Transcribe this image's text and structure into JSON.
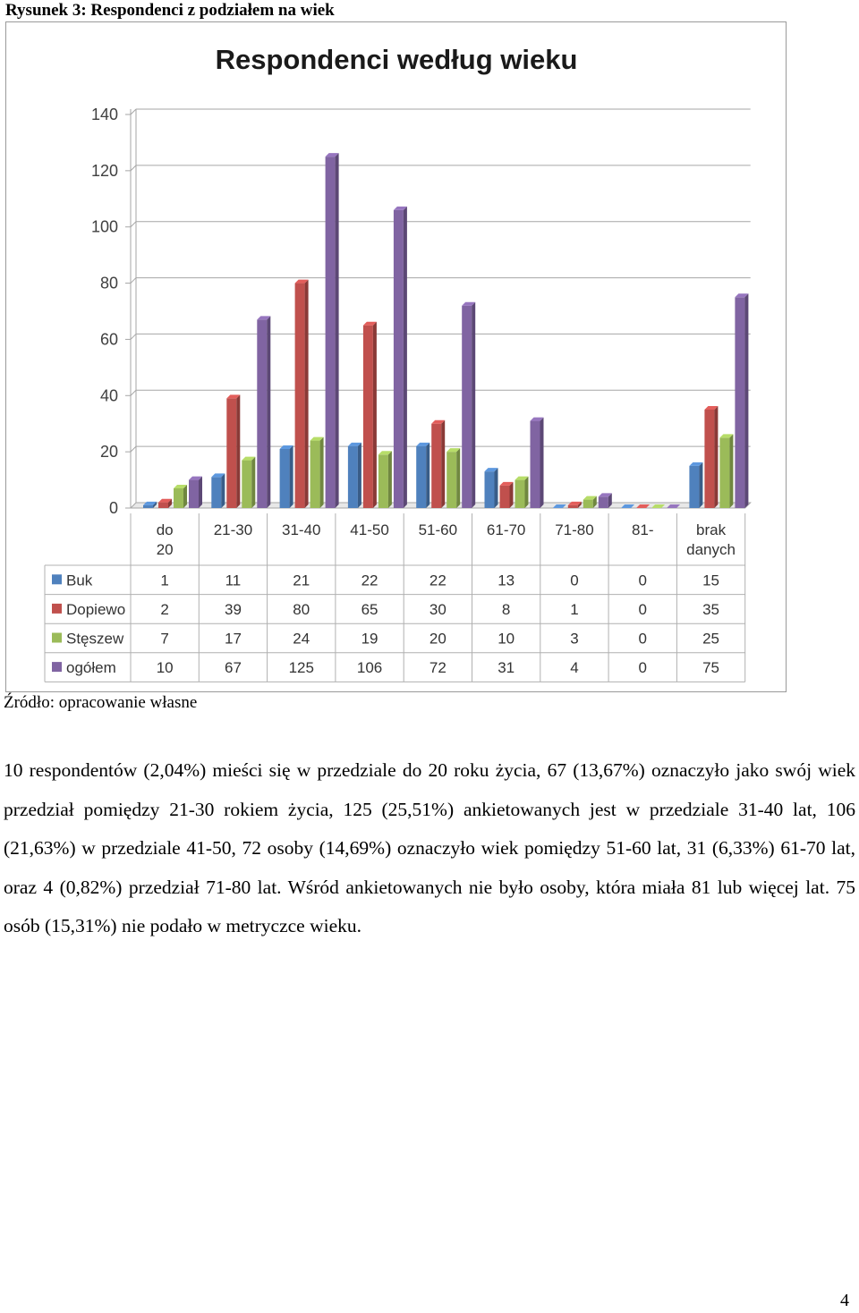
{
  "figure_caption": "Rysunek 3: Respondenci z podziałem na wiek",
  "source_note": "Źródło: opracowanie własne",
  "paragraph": "10 respondentów (2,04%) mieści się w przedziale do 20 roku życia, 67 (13,67%) oznaczyło jako swój wiek przedział pomiędzy 21-30 rokiem życia, 125 (25,51%) ankietowanych jest w przedziale 31-40 lat, 106 (21,63%) w przedziale 41-50, 72 osoby (14,69%) oznaczyło wiek pomiędzy 51-60 lat, 31 (6,33%) 61-70 lat, oraz 4 (0,82%) przedział 71-80 lat. Wśród ankietowanych nie było osoby, która miała 81 lub więcej lat. 75 osób (15,31%) nie podało w metryczce wieku.",
  "page_number": "4",
  "chart_data": {
    "type": "bar",
    "title": "Respondenci według wieku",
    "categories": [
      "do 20",
      "21-30",
      "31-40",
      "41-50",
      "51-60",
      "61-70",
      "71-80",
      "81-",
      "brak danych"
    ],
    "series": [
      {
        "name": "Buk",
        "color": "#4f81bd",
        "values": [
          1,
          11,
          21,
          22,
          22,
          13,
          0,
          0,
          15
        ]
      },
      {
        "name": "Dopiewo",
        "color": "#c0504d",
        "values": [
          2,
          39,
          80,
          65,
          30,
          8,
          1,
          0,
          35
        ]
      },
      {
        "name": "Stęszew",
        "color": "#9bbb59",
        "values": [
          7,
          17,
          24,
          19,
          20,
          10,
          3,
          0,
          25
        ]
      },
      {
        "name": "ogółem",
        "color": "#8064a2",
        "values": [
          10,
          67,
          125,
          106,
          72,
          31,
          4,
          0,
          75
        ]
      }
    ],
    "yticks": [
      "0",
      "20",
      "40",
      "60",
      "80",
      "100",
      "120",
      "140"
    ],
    "ylim": [
      0,
      140
    ],
    "grid": true,
    "legend": "data-table"
  }
}
